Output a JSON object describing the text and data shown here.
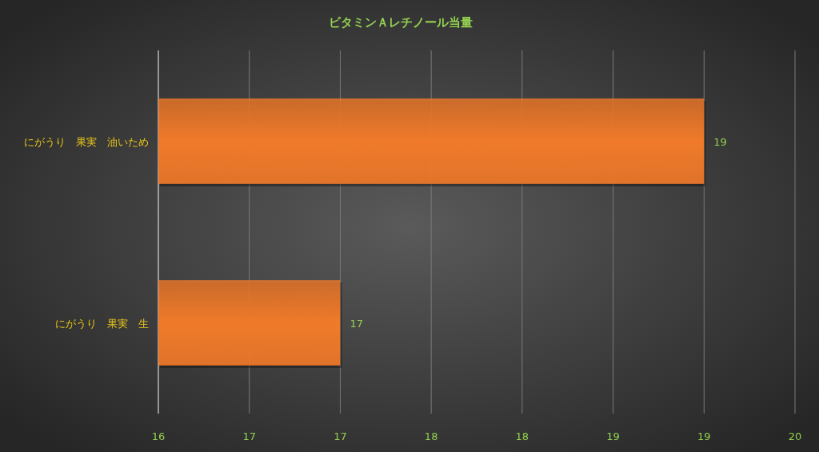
{
  "chart_data": {
    "type": "bar",
    "orientation": "horizontal",
    "title": "ビタミンＡレチノール当量",
    "categories": [
      "にがうり　果実　油いため",
      "にがうり　果実　生"
    ],
    "values": [
      19,
      17
    ],
    "color": "#f07a2a",
    "xlim": [
      16,
      19.5
    ],
    "xticks": [
      16,
      {
        "value": 16.5,
        "label": "17"
      },
      17,
      {
        "value": 17.5,
        "label": "18"
      },
      18,
      {
        "value": 18.5,
        "label": "19"
      },
      19,
      {
        "value": 19.5,
        "label": "20"
      }
    ],
    "grid": "x",
    "data_labels": true
  }
}
